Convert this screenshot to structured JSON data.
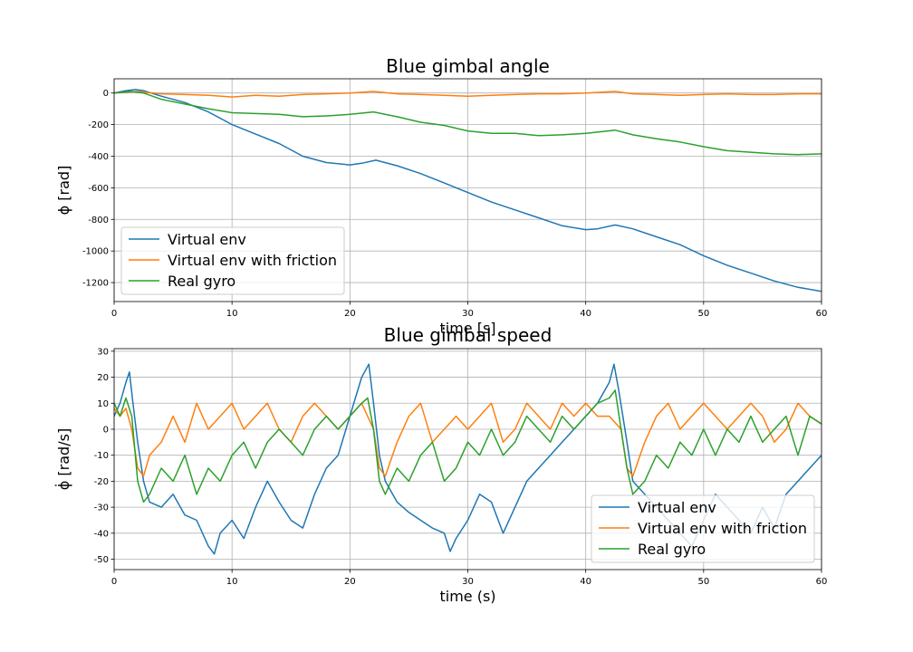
{
  "chart_data": [
    {
      "type": "line",
      "title": "Blue gimbal angle",
      "xlabel": "time [s]",
      "ylabel": "ϕ [rad]",
      "xlim": [
        0,
        60
      ],
      "ylim": [
        -1320,
        90
      ],
      "xticks": [
        0,
        10,
        20,
        30,
        40,
        50,
        60
      ],
      "yticks": [
        -1200,
        -1000,
        -800,
        -600,
        -400,
        -200,
        0
      ],
      "grid": true,
      "legend_position": "lower-left",
      "series": [
        {
          "name": "Virtual env",
          "color": "#1f77b4",
          "x": [
            0,
            1,
            1.8,
            2.5,
            4,
            6,
            8,
            10,
            12,
            14,
            16,
            18,
            20,
            21,
            22.2,
            24,
            26,
            28,
            30,
            32,
            34,
            36,
            38,
            40,
            41,
            42.5,
            44,
            46,
            48,
            50,
            52,
            54,
            56,
            58,
            60
          ],
          "y": [
            0,
            15,
            22,
            15,
            -20,
            -60,
            -120,
            -200,
            -260,
            -320,
            -400,
            -440,
            -455,
            -445,
            -425,
            -460,
            -510,
            -570,
            -630,
            -690,
            -740,
            -790,
            -840,
            -865,
            -860,
            -835,
            -860,
            -910,
            -960,
            -1030,
            -1090,
            -1140,
            -1190,
            -1230,
            -1255
          ]
        },
        {
          "name": "Virtual env with friction",
          "color": "#ff7f0e",
          "x": [
            0,
            2,
            4,
            6,
            8,
            10,
            12,
            14,
            16,
            18,
            20,
            22,
            24,
            26,
            28,
            30,
            32,
            34,
            36,
            38,
            40,
            42.5,
            44,
            46,
            48,
            50,
            52,
            54,
            56,
            58,
            60
          ],
          "y": [
            0,
            10,
            -5,
            -10,
            -15,
            -25,
            -15,
            -20,
            -10,
            -5,
            0,
            10,
            -5,
            -10,
            -15,
            -20,
            -15,
            -10,
            -5,
            -5,
            0,
            10,
            -5,
            -10,
            -15,
            -10,
            -5,
            -10,
            -10,
            -5,
            -5
          ]
        },
        {
          "name": "Real gyro",
          "color": "#2ca02c",
          "x": [
            0,
            1.5,
            2.5,
            4,
            6,
            8,
            10,
            12,
            14,
            16,
            18,
            20,
            22,
            24,
            26,
            28,
            30,
            32,
            34,
            36,
            38,
            40,
            42.5,
            44,
            46,
            48,
            50,
            52,
            54,
            56,
            58,
            60
          ],
          "y": [
            0,
            10,
            0,
            -40,
            -70,
            -100,
            -125,
            -130,
            -135,
            -150,
            -145,
            -135,
            -120,
            -150,
            -185,
            -205,
            -240,
            -255,
            -255,
            -270,
            -265,
            -255,
            -235,
            -265,
            -290,
            -310,
            -340,
            -365,
            -375,
            -385,
            -390,
            -385
          ]
        }
      ]
    },
    {
      "type": "line",
      "title": "Blue gimbal speed",
      "xlabel": "time (s)",
      "ylabel": "ϕ̇ [rad/s]",
      "xlim": [
        0,
        60
      ],
      "ylim": [
        -54,
        31
      ],
      "xticks": [
        0,
        10,
        20,
        30,
        40,
        50,
        60
      ],
      "yticks": [
        -50,
        -40,
        -30,
        -20,
        -10,
        0,
        10,
        20,
        30
      ],
      "grid": true,
      "legend_position": "lower-right",
      "series": [
        {
          "name": "Virtual env",
          "color": "#1f77b4",
          "x": [
            0,
            0.5,
            1,
            1.3,
            1.6,
            2,
            2.5,
            3,
            4,
            5,
            6,
            7,
            8,
            8.5,
            9,
            10,
            11,
            12,
            13,
            14,
            15,
            16,
            17,
            18,
            19,
            20,
            21,
            21.6,
            22,
            22.5,
            23,
            24,
            25,
            26,
            27,
            28,
            28.5,
            29,
            30,
            31,
            32,
            33,
            34,
            35,
            36,
            37,
            38,
            39,
            40,
            41,
            42,
            42.4,
            42.8,
            43.5,
            44,
            45,
            46,
            47,
            48,
            49,
            50,
            51,
            52,
            53,
            54,
            55,
            56,
            57,
            58,
            59,
            60
          ],
          "y": [
            5,
            10,
            18,
            22,
            10,
            -5,
            -20,
            -28,
            -30,
            -25,
            -33,
            -35,
            -45,
            -48,
            -40,
            -35,
            -42,
            -30,
            -20,
            -28,
            -35,
            -38,
            -25,
            -15,
            -10,
            5,
            20,
            25,
            10,
            -10,
            -20,
            -28,
            -32,
            -35,
            -38,
            -40,
            -47,
            -42,
            -35,
            -25,
            -28,
            -40,
            -30,
            -20,
            -15,
            -10,
            -5,
            0,
            5,
            10,
            18,
            25,
            15,
            -5,
            -20,
            -25,
            -30,
            -35,
            -40,
            -45,
            -35,
            -25,
            -30,
            -35,
            -40,
            -30,
            -38,
            -25,
            -20,
            -15,
            -10
          ]
        },
        {
          "name": "Virtual env with friction",
          "color": "#ff7f0e",
          "x": [
            0,
            0.5,
            1,
            1.5,
            2,
            2.5,
            3,
            4,
            5,
            6,
            7,
            8,
            9,
            10,
            11,
            12,
            13,
            14,
            15,
            16,
            17,
            18,
            19,
            20,
            21,
            22,
            22.5,
            23,
            24,
            25,
            26,
            27,
            28,
            29,
            30,
            31,
            32,
            33,
            34,
            35,
            36,
            37,
            38,
            39,
            40,
            41,
            42,
            43,
            43.5,
            44,
            45,
            46,
            47,
            48,
            49,
            50,
            51,
            52,
            53,
            54,
            55,
            56,
            57,
            58,
            59,
            60
          ],
          "y": [
            8,
            5,
            8,
            0,
            -15,
            -18,
            -10,
            -5,
            5,
            -5,
            10,
            0,
            5,
            10,
            0,
            5,
            10,
            0,
            -5,
            5,
            10,
            5,
            0,
            5,
            10,
            0,
            -15,
            -18,
            -5,
            5,
            10,
            -5,
            0,
            5,
            0,
            5,
            10,
            -5,
            0,
            10,
            5,
            0,
            10,
            5,
            10,
            5,
            5,
            0,
            -15,
            -18,
            -5,
            5,
            10,
            0,
            5,
            10,
            5,
            0,
            5,
            10,
            5,
            -5,
            0,
            10,
            5,
            2
          ]
        },
        {
          "name": "Real gyro",
          "color": "#2ca02c",
          "x": [
            0,
            0.5,
            1,
            1.5,
            2,
            2.5,
            3,
            4,
            5,
            6,
            7,
            8,
            9,
            10,
            11,
            12,
            13,
            14,
            15,
            16,
            17,
            18,
            19,
            20,
            21,
            21.5,
            22,
            22.5,
            23,
            24,
            25,
            26,
            27,
            28,
            29,
            30,
            31,
            32,
            33,
            34,
            35,
            36,
            37,
            38,
            39,
            40,
            41,
            42,
            42.5,
            43,
            43.5,
            44,
            45,
            46,
            47,
            48,
            49,
            50,
            51,
            52,
            53,
            54,
            55,
            56,
            57,
            58,
            59,
            60
          ],
          "y": [
            10,
            5,
            12,
            5,
            -20,
            -28,
            -25,
            -15,
            -20,
            -10,
            -25,
            -15,
            -20,
            -10,
            -5,
            -15,
            -5,
            0,
            -5,
            -10,
            0,
            5,
            0,
            5,
            10,
            12,
            0,
            -20,
            -25,
            -15,
            -20,
            -10,
            -5,
            -20,
            -15,
            -5,
            -10,
            0,
            -10,
            -5,
            5,
            0,
            -5,
            5,
            0,
            5,
            10,
            12,
            15,
            0,
            -15,
            -25,
            -20,
            -10,
            -15,
            -5,
            -10,
            0,
            -10,
            0,
            -5,
            5,
            -5,
            0,
            5,
            -10,
            5,
            2
          ]
        }
      ]
    }
  ]
}
